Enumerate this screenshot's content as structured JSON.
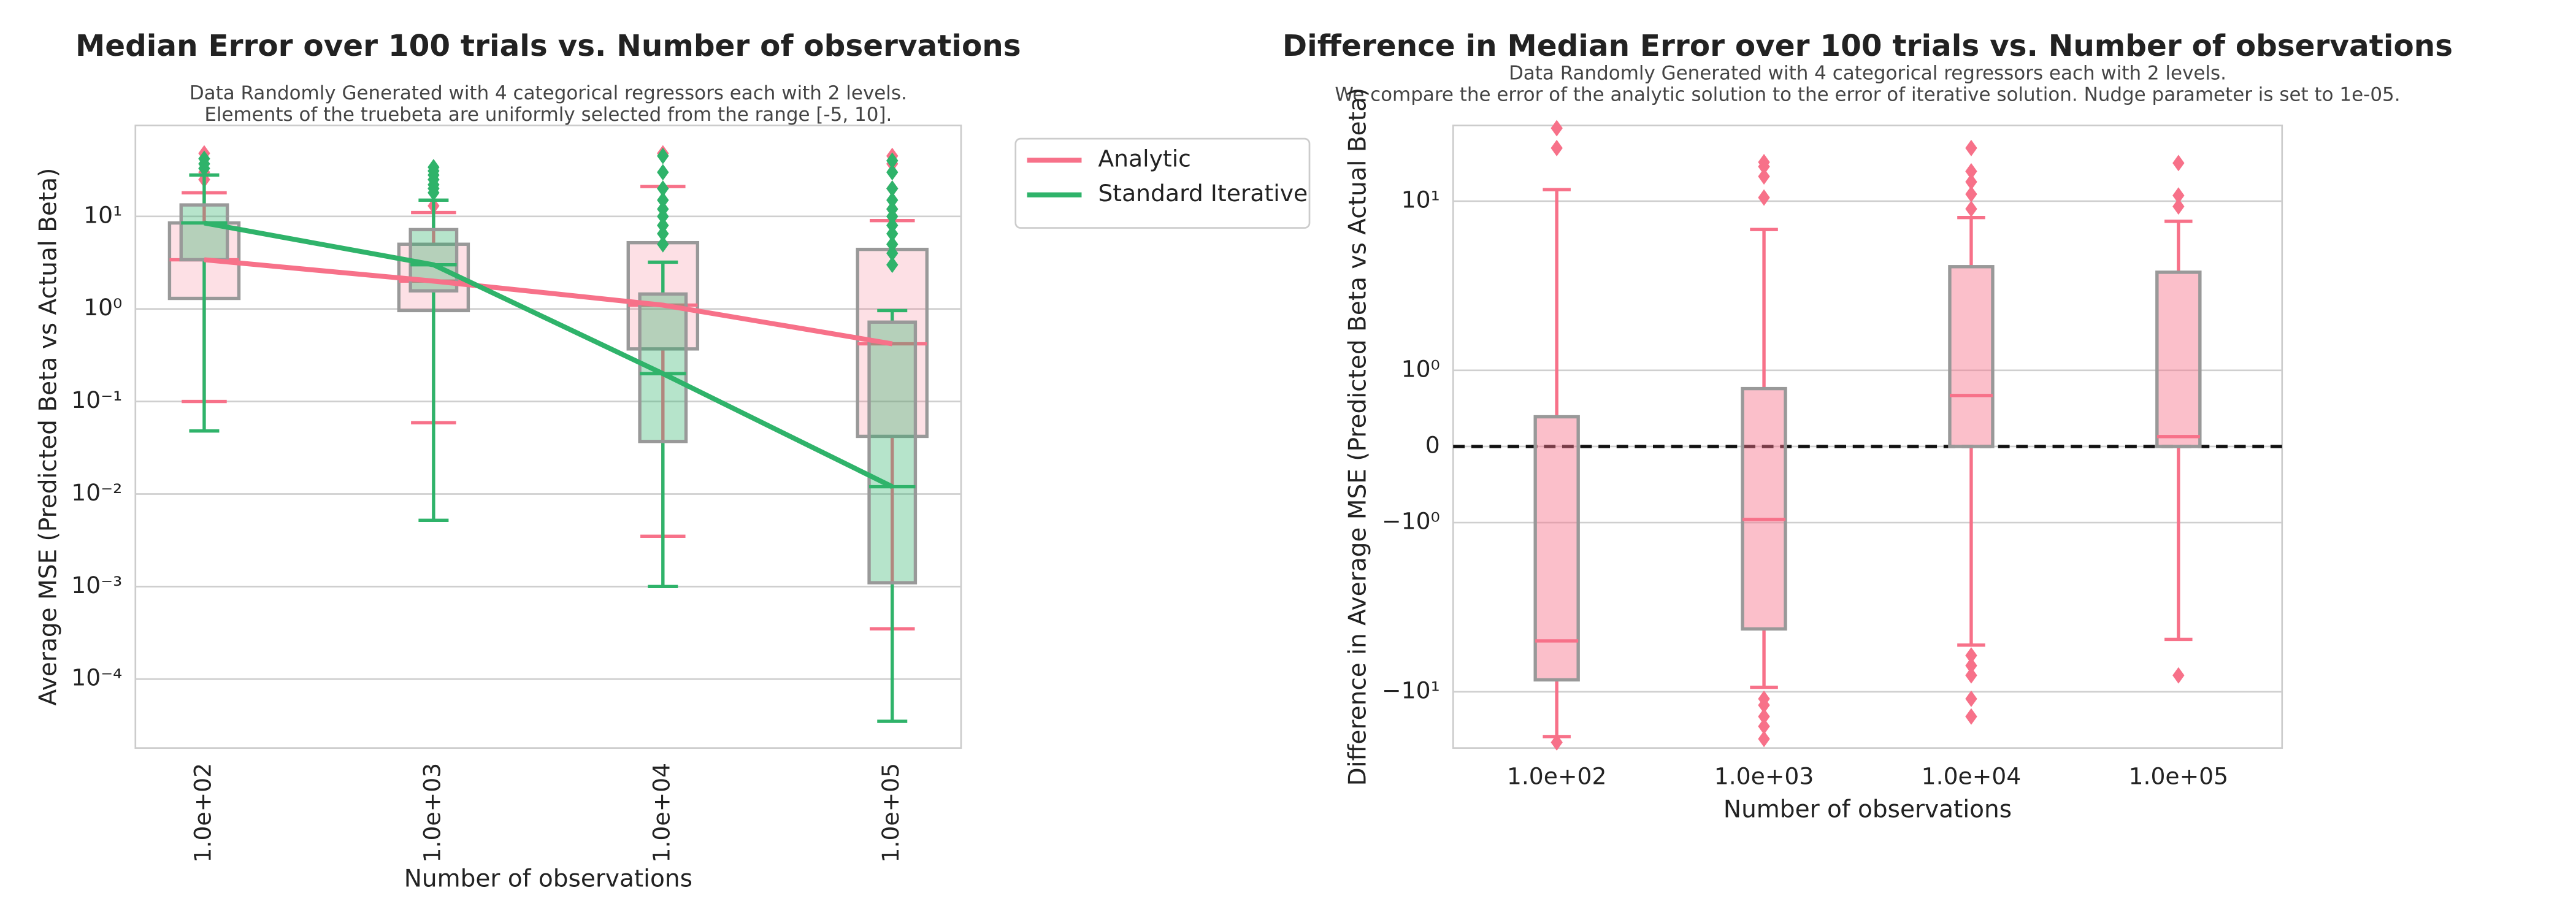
{
  "chart_data": [
    {
      "type": "box",
      "title": "Median Error over 100 trials vs. Number of observations",
      "subtitle": [
        "Data Randomly Generated with 4 categorical regressors each with 2 levels.",
        "Elements of the truebeta are uniformly selected from the range [-5, 10]."
      ],
      "xlabel": "Number of observations",
      "ylabel": "Average MSE (Predicted Beta vs Actual Beta)",
      "categories": [
        "1.0e+02",
        "1.0e+03",
        "1.0e+04",
        "1.0e+05"
      ],
      "yscale": "log",
      "ylim": [
        1.8e-05,
        96
      ],
      "yticks": [
        {
          "value": 0.0001,
          "label": "10⁻⁴"
        },
        {
          "value": 0.001,
          "label": "10⁻³"
        },
        {
          "value": 0.01,
          "label": "10⁻²"
        },
        {
          "value": 0.1,
          "label": "10⁻¹"
        },
        {
          "value": 1,
          "label": "10⁰"
        },
        {
          "value": 10,
          "label": "10¹"
        }
      ],
      "grid": true,
      "legend": "outside-right",
      "median_line": true,
      "series": [
        {
          "name": "Analytic",
          "color": "#f77189",
          "boxes": [
            {
              "whislo": 0.1,
              "q1": 1.3,
              "med": 3.4,
              "q3": 8.5,
              "whishi": 18,
              "fliers": [
                25,
                30,
                48
              ]
            },
            {
              "whislo": 0.059,
              "q1": 0.96,
              "med": 2.0,
              "q3": 5.0,
              "whishi": 11,
              "fliers": [
                13
              ]
            },
            {
              "whislo": 0.0035,
              "q1": 0.37,
              "med": 1.1,
              "q3": 5.2,
              "whishi": 21,
              "fliers": [
                48
              ]
            },
            {
              "whislo": 0.00035,
              "q1": 0.042,
              "med": 0.42,
              "q3": 4.4,
              "whishi": 9,
              "fliers": [
                12,
                20,
                37,
                45
              ]
            }
          ]
        },
        {
          "name": "Standard Iterative",
          "color": "#2fb36a",
          "boxes": [
            {
              "whislo": 0.048,
              "q1": 3.4,
              "med": 8.5,
              "q3": 13.3,
              "whishi": 28,
              "fliers": [
                33,
                37,
                42
              ]
            },
            {
              "whislo": 0.0052,
              "q1": 1.57,
              "med": 3.0,
              "q3": 7.2,
              "whishi": 15,
              "fliers": [
                18,
                20,
                22,
                25,
                28,
                31,
                34
              ]
            },
            {
              "whislo": 0.001,
              "q1": 0.037,
              "med": 0.2,
              "q3": 1.45,
              "whishi": 3.2,
              "fliers": [
                5,
                6.5,
                8,
                10,
                12,
                15,
                20,
                30,
                45
              ]
            },
            {
              "whislo": 3.5e-05,
              "q1": 0.0011,
              "med": 0.012,
              "q3": 0.72,
              "whishi": 0.96,
              "fliers": [
                3,
                4,
                5,
                6.5,
                8,
                10,
                12,
                15,
                20,
                30,
                40
              ]
            }
          ]
        }
      ]
    },
    {
      "type": "box",
      "title": "Difference in Median Error over 100 trials vs. Number of observations",
      "subtitle": [
        "Data Randomly Generated with 4 categorical regressors each with 2 levels.",
        "We compare the error of the analytic solution to the error of iterative solution. Nudge parameter is set to 1e-05."
      ],
      "xlabel": "Number of observations",
      "ylabel": "Difference in Average MSE (Predicted Beta vs Actual Beta)",
      "categories": [
        "1.0e+02",
        "1.0e+03",
        "1.0e+04",
        "1.0e+05"
      ],
      "yscale": "symlog",
      "linthresh": 1,
      "ylim": [
        -21.5,
        28
      ],
      "yticks": [
        {
          "value": -10,
          "label": "−10¹"
        },
        {
          "value": -1,
          "label": "−10⁰"
        },
        0,
        {
          "value": 1,
          "label": "10⁰"
        },
        {
          "value": 10,
          "label": "10¹"
        }
      ],
      "grid": true,
      "reference_line": 0,
      "series": [
        {
          "color": "#f77189",
          "boxes": [
            {
              "whislo": -18.4,
              "q1": -8.5,
              "med": -5.0,
              "q3": 0.39,
              "whishi": 11.7,
              "fliers": [
                27,
                20.6,
                -19.9
              ]
            },
            {
              "whislo": -9.4,
              "q1": -4.25,
              "med": -0.96,
              "q3": 0.76,
              "whishi": 6.8,
              "fliers": [
                17,
                16,
                14,
                10.5,
                -11,
                -12,
                -14,
                -16,
                -19
              ]
            },
            {
              "whislo": -5.3,
              "q1": 0,
              "med": 0.67,
              "q3": 4.1,
              "whishi": 8.0,
              "fliers": [
                20.6,
                15,
                13,
                11,
                9,
                -6.1,
                -7,
                -8,
                -11,
                -14
              ]
            },
            {
              "whislo": -4.9,
              "q1": 0,
              "med": 0.13,
              "q3": 3.8,
              "whishi": 7.6,
              "fliers": [
                16.8,
                10.8,
                9.3,
                -8.0
              ]
            }
          ]
        }
      ]
    }
  ]
}
